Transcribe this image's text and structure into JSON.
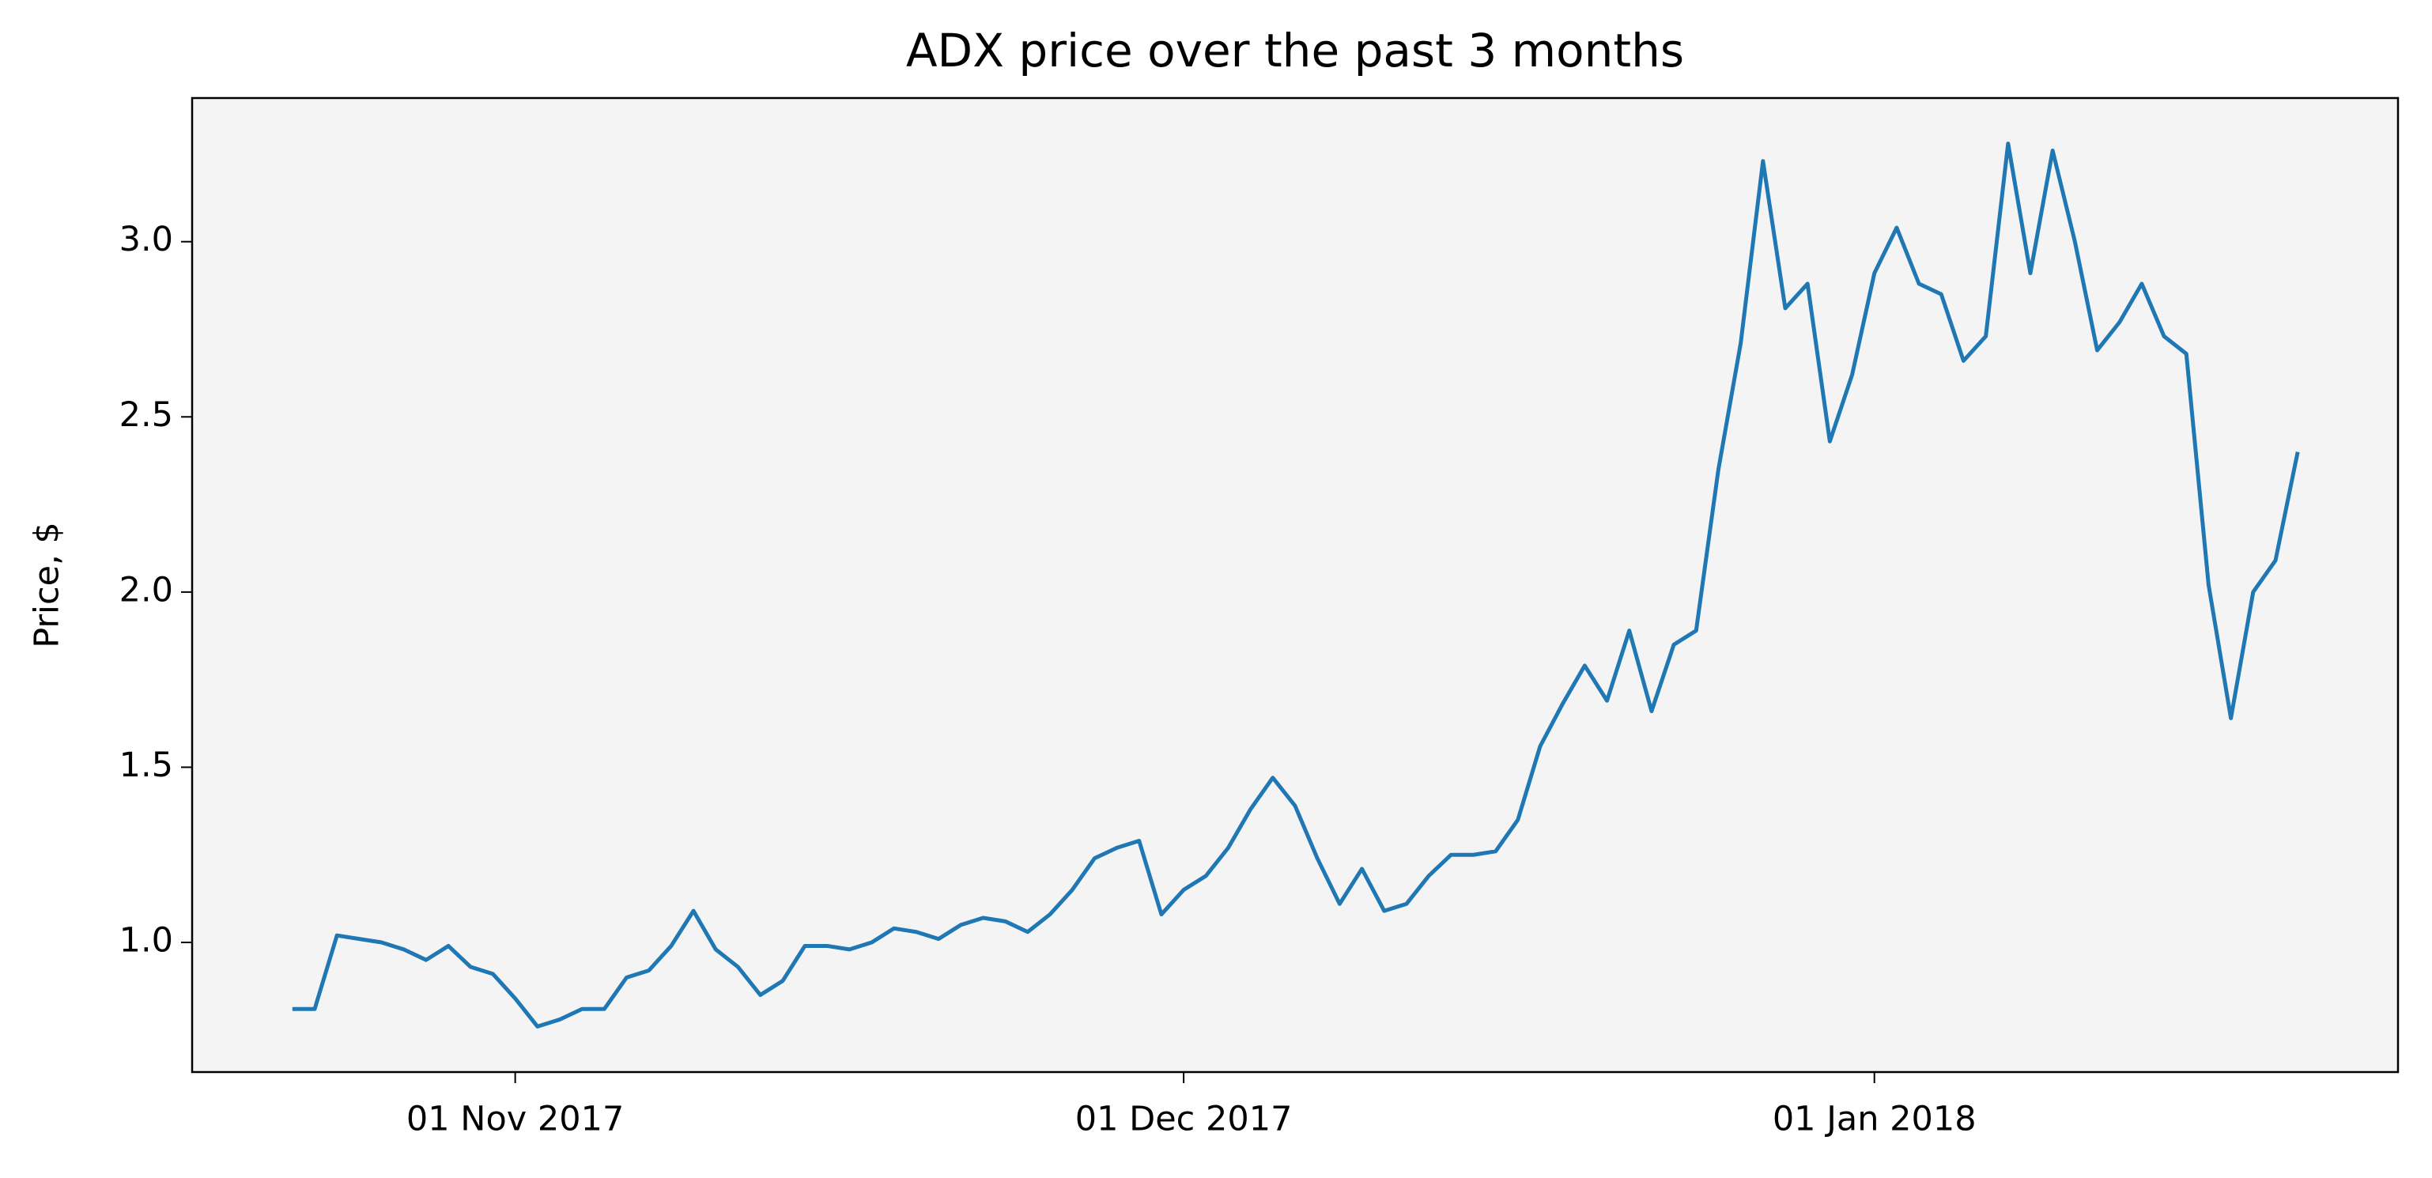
{
  "chart_data": {
    "type": "line",
    "title": "ADX price over the past 3 months",
    "y_label": "Price, $",
    "color": "#1f77b4",
    "background": "#f4f4f4",
    "grid": false,
    "x": [
      "2017-10-22",
      "2017-10-23",
      "2017-10-24",
      "2017-10-25",
      "2017-10-26",
      "2017-10-27",
      "2017-10-28",
      "2017-10-29",
      "2017-10-30",
      "2017-10-31",
      "2017-11-01",
      "2017-11-02",
      "2017-11-03",
      "2017-11-04",
      "2017-11-05",
      "2017-11-06",
      "2017-11-07",
      "2017-11-08",
      "2017-11-09",
      "2017-11-10",
      "2017-11-11",
      "2017-11-12",
      "2017-11-13",
      "2017-11-14",
      "2017-11-15",
      "2017-11-16",
      "2017-11-17",
      "2017-11-18",
      "2017-11-19",
      "2017-11-20",
      "2017-11-21",
      "2017-11-22",
      "2017-11-23",
      "2017-11-24",
      "2017-11-25",
      "2017-11-26",
      "2017-11-27",
      "2017-11-28",
      "2017-11-29",
      "2017-11-30",
      "2017-12-01",
      "2017-12-02",
      "2017-12-03",
      "2017-12-04",
      "2017-12-05",
      "2017-12-06",
      "2017-12-07",
      "2017-12-08",
      "2017-12-09",
      "2017-12-10",
      "2017-12-11",
      "2017-12-12",
      "2017-12-13",
      "2017-12-14",
      "2017-12-15",
      "2017-12-16",
      "2017-12-17",
      "2017-12-18",
      "2017-12-19",
      "2017-12-20",
      "2017-12-21",
      "2017-12-22",
      "2017-12-23",
      "2017-12-24",
      "2017-12-25",
      "2017-12-26",
      "2017-12-27",
      "2017-12-28",
      "2017-12-29",
      "2017-12-30",
      "2017-12-31",
      "2018-01-01",
      "2018-01-02",
      "2018-01-03",
      "2018-01-04",
      "2018-01-05",
      "2018-01-06",
      "2018-01-07",
      "2018-01-08",
      "2018-01-09",
      "2018-01-10",
      "2018-01-11",
      "2018-01-12",
      "2018-01-13",
      "2018-01-14",
      "2018-01-15",
      "2018-01-16",
      "2018-01-17",
      "2018-01-18",
      "2018-01-19",
      "2018-01-20"
    ],
    "values": [
      0.81,
      0.81,
      1.02,
      1.01,
      1.0,
      0.98,
      0.95,
      0.99,
      0.93,
      0.91,
      0.84,
      0.76,
      0.78,
      0.81,
      0.81,
      0.9,
      0.92,
      0.99,
      1.09,
      0.98,
      0.93,
      0.85,
      0.89,
      0.99,
      0.99,
      0.98,
      1.0,
      1.04,
      1.03,
      1.01,
      1.05,
      1.07,
      1.06,
      1.03,
      1.08,
      1.15,
      1.24,
      1.27,
      1.29,
      1.08,
      1.15,
      1.19,
      1.27,
      1.38,
      1.47,
      1.39,
      1.24,
      1.11,
      1.21,
      1.09,
      1.11,
      1.19,
      1.25,
      1.25,
      1.26,
      1.35,
      1.56,
      1.68,
      1.79,
      1.69,
      1.89,
      1.66,
      1.85,
      1.89,
      2.35,
      2.71,
      3.23,
      2.81,
      2.88,
      2.43,
      2.62,
      2.91,
      3.04,
      2.88,
      2.85,
      2.66,
      2.73,
      3.28,
      2.91,
      3.26,
      3.0,
      2.69,
      2.77,
      2.88,
      2.73,
      2.68,
      2.02,
      1.64,
      2.0,
      2.09,
      2.4
    ],
    "xlim": [
      "2017-10-17T12:00:00Z",
      "2018-01-24T12:00:00Z"
    ],
    "xticks": [
      {
        "value": "2017-11-01",
        "label": "01 Nov 2017"
      },
      {
        "value": "2017-12-01",
        "label": "01 Dec 2017"
      },
      {
        "value": "2018-01-01",
        "label": "01 Jan 2018"
      }
    ],
    "ylim": [
      0.63,
      3.41
    ],
    "yticks": [
      {
        "value": 1,
        "label": "1.0"
      },
      1.5,
      {
        "value": 2,
        "label": "2.0"
      },
      2.5,
      {
        "value": 3,
        "label": "3.0"
      }
    ]
  }
}
